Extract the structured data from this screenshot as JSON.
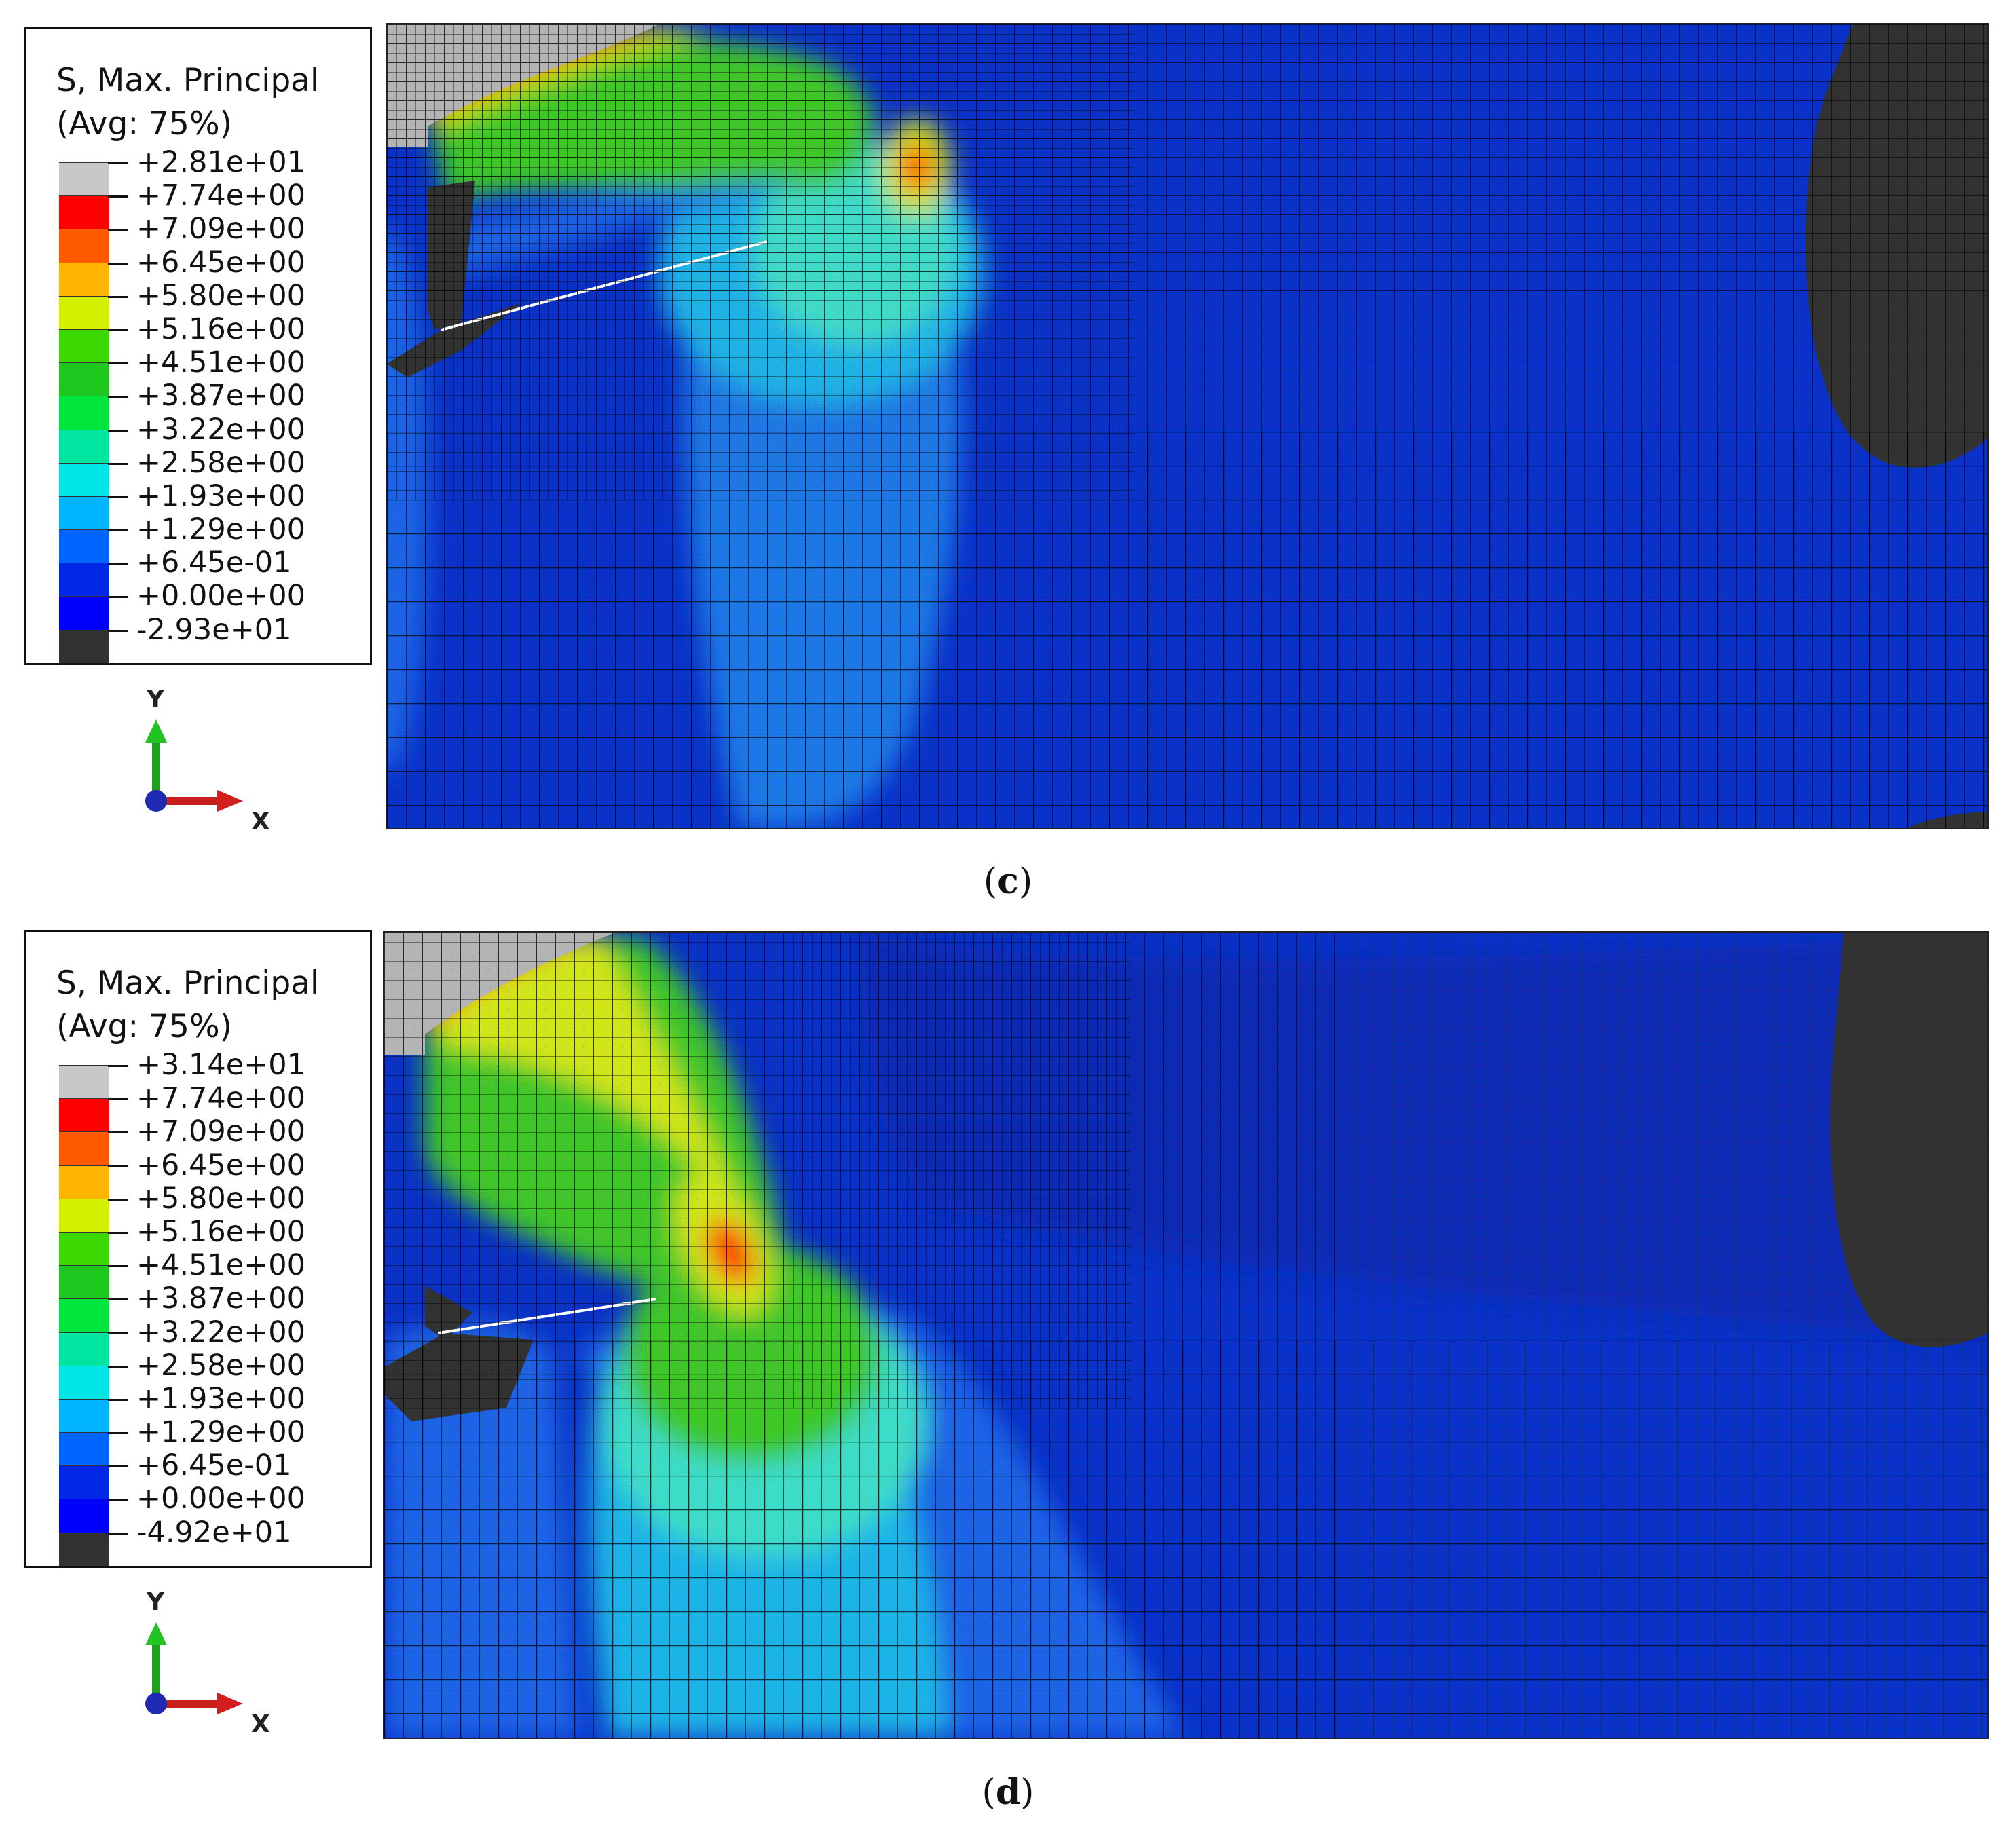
{
  "panels": [
    {
      "caption": "(c)",
      "caption_open": "(",
      "caption_letter": "c",
      "caption_close": ")",
      "legend": {
        "title": "S, Max. Principal",
        "averaging": "(Avg: 75%)",
        "values": [
          "+2.81e+01",
          "+7.74e+00",
          "+7.09e+00",
          "+6.45e+00",
          "+5.80e+00",
          "+5.16e+00",
          "+4.51e+00",
          "+3.87e+00",
          "+3.22e+00",
          "+2.58e+00",
          "+1.93e+00",
          "+1.29e+00",
          "+6.45e-01",
          "+0.00e+00",
          "-2.93e+01"
        ]
      },
      "triad": {
        "y_label": "Y",
        "x_label": "X"
      }
    },
    {
      "caption": "(d)",
      "caption_open": "(",
      "caption_letter": "d",
      "caption_close": ")",
      "legend": {
        "title": "S, Max. Principal",
        "averaging": "(Avg: 75%)",
        "values": [
          "+3.14e+01",
          "+7.74e+00",
          "+7.09e+00",
          "+6.45e+00",
          "+5.80e+00",
          "+5.16e+00",
          "+4.51e+00",
          "+3.87e+00",
          "+3.22e+00",
          "+2.58e+00",
          "+1.93e+00",
          "+1.29e+00",
          "+6.45e-01",
          "+0.00e+00",
          "-4.92e+01"
        ]
      },
      "triad": {
        "y_label": "Y",
        "x_label": "X"
      }
    }
  ],
  "legend_colors": [
    "#c8c8c8",
    "#ff0000",
    "#ff5a00",
    "#ffb400",
    "#d4f000",
    "#3cd800",
    "#1ec81e",
    "#00e63c",
    "#00e6a0",
    "#00e6e6",
    "#00b4ff",
    "#0064ff",
    "#0028e6",
    "#0000ff",
    "#323232"
  ],
  "mesh_colors": {
    "background_blue": "#0a32c8",
    "light_blue": "#1e96e6",
    "cyan": "#3cdcc8",
    "green": "#3cc828",
    "yellow": "#d2e614",
    "red": "#ff1e00",
    "grey": "#b4b4b4",
    "dark": "#323232",
    "mesh_line": "#000000"
  }
}
